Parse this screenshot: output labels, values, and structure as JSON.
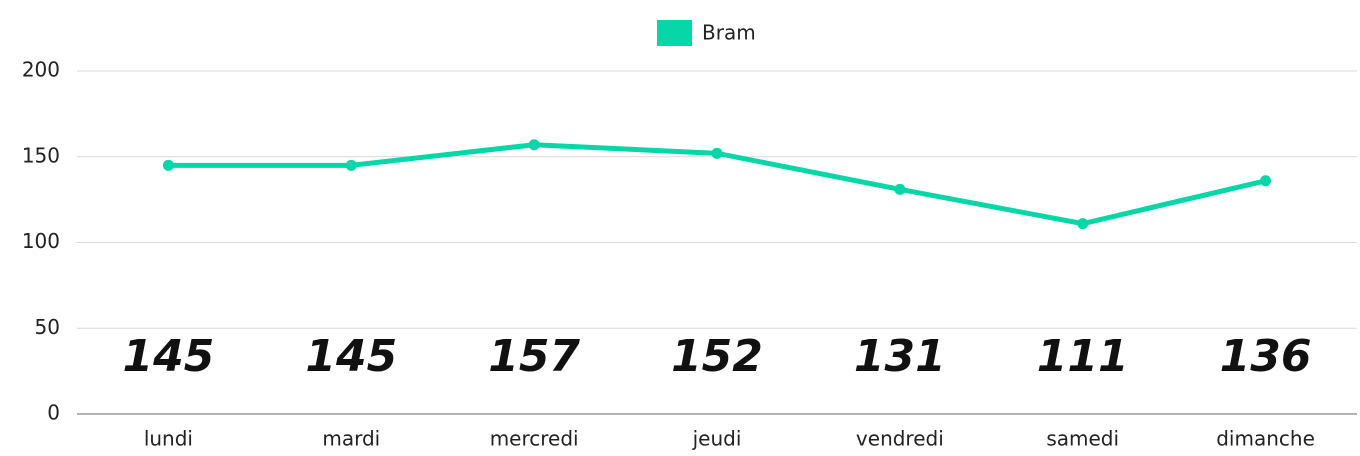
{
  "chart_data": {
    "type": "line",
    "categories": [
      "lundi",
      "mardi",
      "mercredi",
      "jeudi",
      "vendredi",
      "samedi",
      "dimanche"
    ],
    "series": [
      {
        "name": "Bram",
        "color": "#06d6a8",
        "values": [
          145,
          145,
          157,
          152,
          131,
          111,
          136
        ]
      }
    ],
    "ylim": [
      0,
      200
    ],
    "yticks": [
      0,
      50,
      100,
      150,
      200
    ],
    "grid": true
  }
}
